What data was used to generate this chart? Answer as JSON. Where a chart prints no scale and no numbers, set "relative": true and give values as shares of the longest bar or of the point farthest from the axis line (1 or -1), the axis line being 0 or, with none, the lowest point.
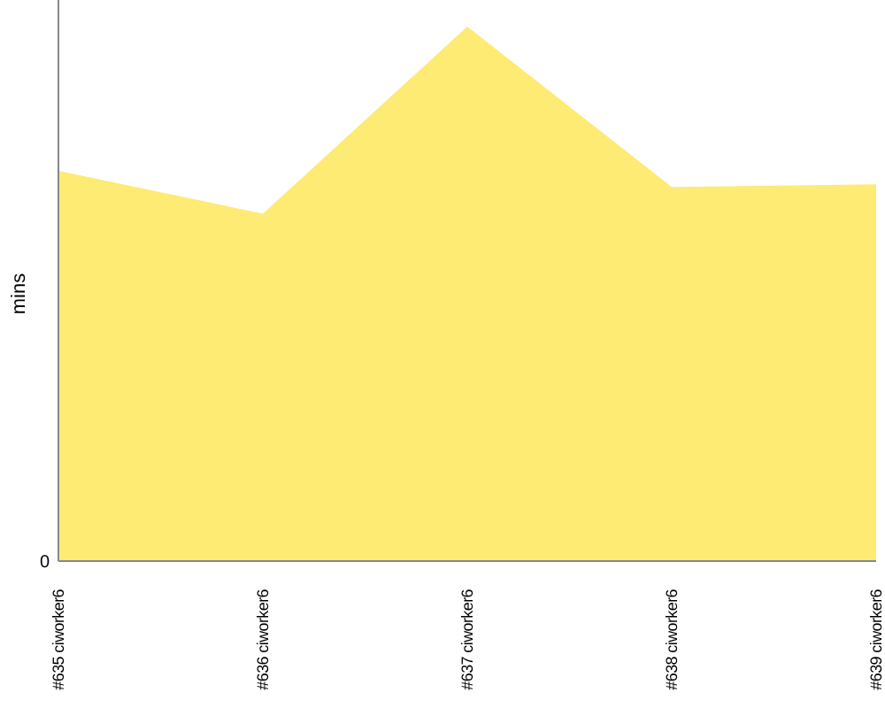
{
  "chart_data": {
    "type": "area",
    "relative": true,
    "ylabel": "mins",
    "categories": [
      "#635 ciworker6",
      "#636 ciworker6",
      "#637 ciworker6",
      "#638 ciworker6",
      "#639 ciworker6"
    ],
    "series": [
      {
        "color": "#fdeb74",
        "values": [
          0.73,
          0.65,
          1,
          0.7,
          0.705
        ]
      }
    ],
    "annotations": [
      "0"
    ]
  }
}
